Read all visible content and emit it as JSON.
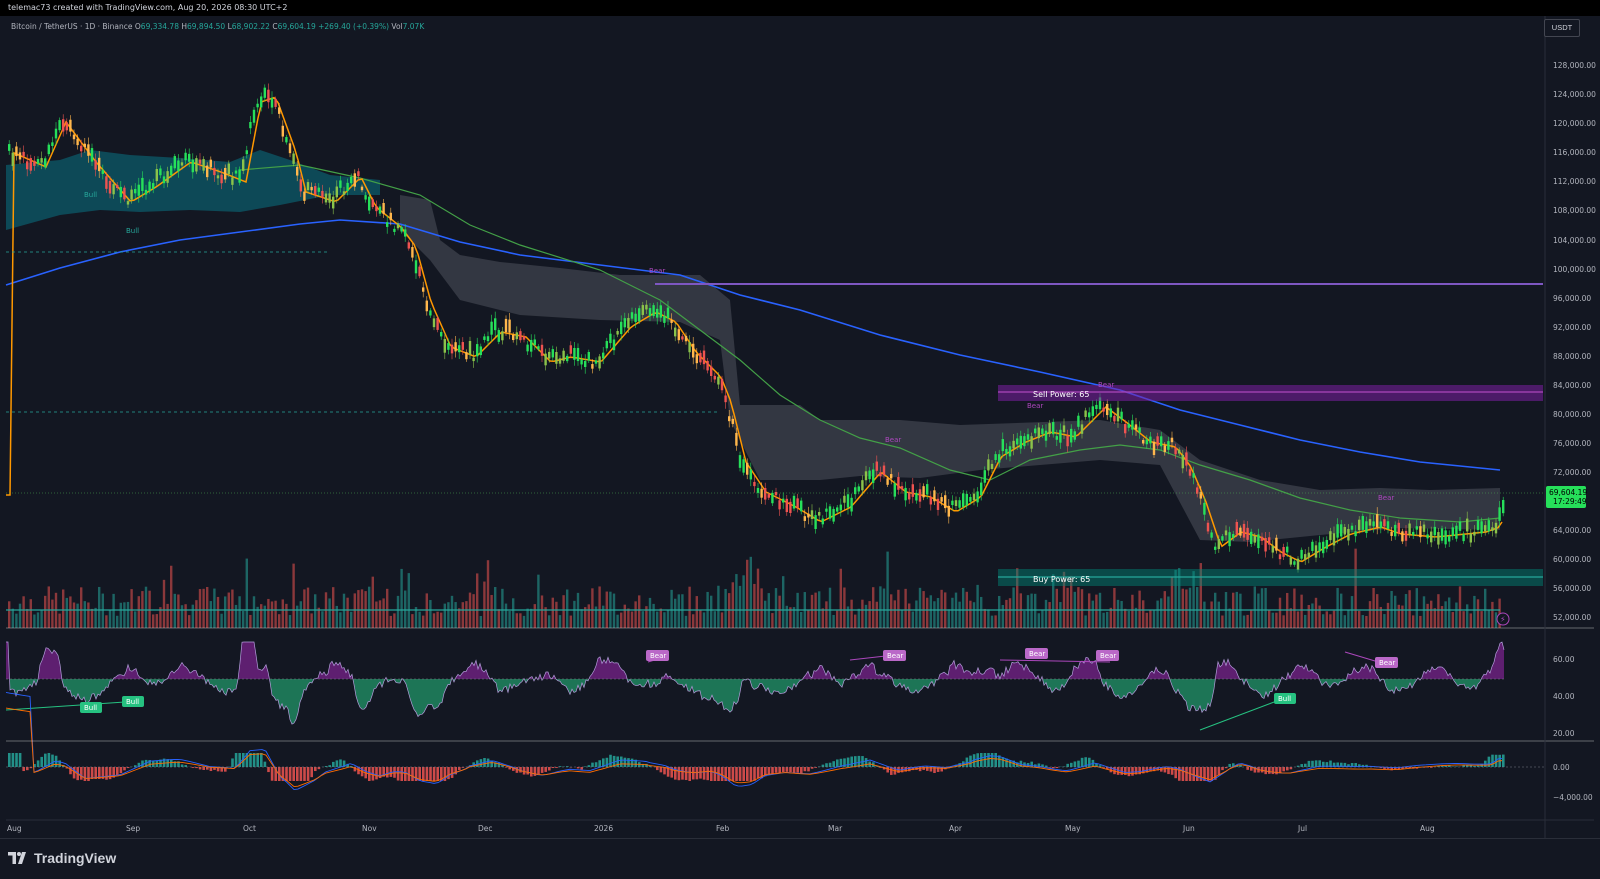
{
  "topbar": {
    "caption": "telemac73 created with TradingView.com, Aug 20, 2026 08:30 UTC+2"
  },
  "legend": {
    "symbol": "Bitcoin / TetherUS · 1D · Binance",
    "o_label": "O",
    "o": "69,334.78",
    "h_label": "H",
    "h": "69,894.50",
    "l_label": "L",
    "l": "68,902.22",
    "c_label": "C",
    "c": "69,604.19",
    "change": "+269.40 (+0.39%)",
    "vol_label": "Vol",
    "vol": "7.07K"
  },
  "currency_button": "USDT",
  "price_axis": [
    "128,000.00",
    "124,000.00",
    "120,000.00",
    "116,000.00",
    "112,000.00",
    "108,000.00",
    "104,000.00",
    "100,000.00",
    "96,000.00",
    "92,000.00",
    "88,000.00",
    "84,000.00",
    "80,000.00",
    "76,000.00",
    "72,000.00",
    "64,000.00",
    "60,000.00",
    "56,000.00",
    "52,000.00"
  ],
  "last_price": {
    "value": "69,604.19",
    "countdown": "17:29:49",
    "color": "#26e05a"
  },
  "rsi_axis": [
    "60.00",
    "40.00",
    "20.00"
  ],
  "macd_axis": [
    "0.00",
    "−4,000.00"
  ],
  "time_axis": [
    "Aug",
    "Sep",
    "Oct",
    "Nov",
    "Dec",
    "2026",
    "Feb",
    "Mar",
    "Apr",
    "May",
    "Jun",
    "Jul",
    "Aug"
  ],
  "zones": {
    "sell": "Sell Power: 65",
    "buy": "Buy Power: 65"
  },
  "signals": {
    "bull": "Bull",
    "bear": "Bear"
  },
  "brand": {
    "name": "TradingView"
  },
  "colors": {
    "bull": "#26a69a",
    "bear": "#ef5350",
    "accent_purple": "#9c27b0",
    "ema_orange": "#ff9800",
    "sma_green": "#4caf50",
    "sma_blue": "#2962ff"
  }
}
